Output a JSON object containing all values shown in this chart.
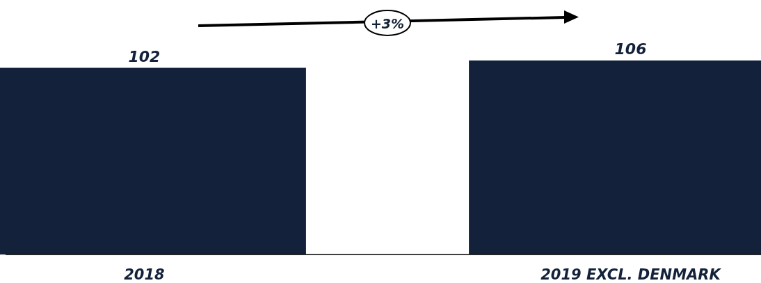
{
  "chart_data": {
    "type": "bar",
    "categories": [
      "2018",
      "2019 EXCL. DENMARK"
    ],
    "values": [
      102,
      106
    ],
    "color": "#13223a",
    "data_labels": true,
    "annotations": [
      "+3%"
    ]
  }
}
